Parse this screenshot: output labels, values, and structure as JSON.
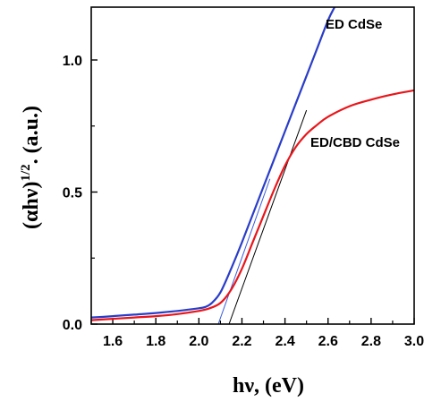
{
  "chart_data": {
    "type": "line",
    "xlabel": "hν, (eV)",
    "ylabel_main": "(αhν)",
    "ylabel_sup": "1/2",
    "ylabel_rest": ". (a.u.)",
    "xlim": [
      1.5,
      3.0
    ],
    "ylim": [
      0.0,
      1.2
    ],
    "xticks": [
      1.6,
      1.8,
      2.0,
      2.2,
      2.4,
      2.6,
      2.8,
      3.0
    ],
    "xtick_labels": [
      "1.6",
      "1.8",
      "2.0",
      "2.2",
      "2.4",
      "2.6",
      "2.8",
      "3.0"
    ],
    "yticks": [
      0.0,
      0.5,
      1.0
    ],
    "ytick_labels": [
      "0.0",
      "0.5",
      "1.0"
    ],
    "grid": false,
    "series": [
      {
        "name": "ED CdSe",
        "color": "#2a3dc8",
        "x": [
          1.5,
          1.6,
          1.7,
          1.8,
          1.9,
          2.0,
          2.03,
          2.06,
          2.1,
          2.15,
          2.2,
          2.3,
          2.4,
          2.5,
          2.55,
          2.6,
          2.63
        ],
        "y": [
          0.025,
          0.03,
          0.036,
          0.042,
          0.05,
          0.06,
          0.065,
          0.08,
          0.12,
          0.21,
          0.31,
          0.52,
          0.73,
          0.94,
          1.045,
          1.15,
          1.2
        ]
      },
      {
        "name": "ED/CBD CdSe",
        "color": "#e8161b",
        "x": [
          1.5,
          1.6,
          1.7,
          1.8,
          1.9,
          2.0,
          2.05,
          2.1,
          2.15,
          2.2,
          2.25,
          2.3,
          2.35,
          2.4,
          2.45,
          2.5,
          2.55,
          2.6,
          2.7,
          2.8,
          2.9,
          3.0
        ],
        "y": [
          0.015,
          0.02,
          0.025,
          0.03,
          0.038,
          0.05,
          0.06,
          0.08,
          0.13,
          0.21,
          0.31,
          0.41,
          0.51,
          0.6,
          0.67,
          0.72,
          0.755,
          0.785,
          0.825,
          0.85,
          0.87,
          0.885
        ]
      }
    ],
    "fit_lines": [
      {
        "color": "#3b5bdb",
        "x": [
          2.09,
          2.33
        ],
        "y": [
          0.0,
          0.55
        ]
      },
      {
        "color": "#000000",
        "x": [
          2.14,
          2.5
        ],
        "y": [
          0.0,
          0.81
        ]
      }
    ]
  }
}
